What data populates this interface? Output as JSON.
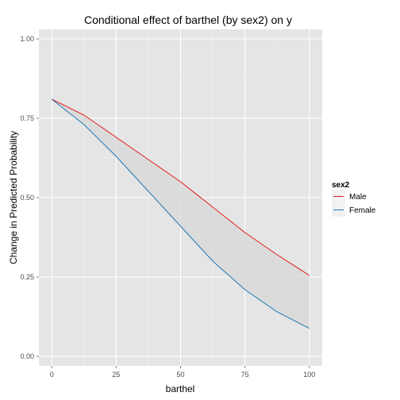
{
  "chart_data": {
    "type": "line",
    "title": "Conditional effect of barthel (by sex2) on y",
    "xlabel": "barthel",
    "ylabel": "Change in Predicted Probability",
    "xlim": [
      -5,
      105
    ],
    "ylim": [
      -0.03,
      1.03
    ],
    "xticks": [
      0,
      25,
      50,
      75,
      100
    ],
    "xtick_labels": [
      "0",
      "25",
      "50",
      "75",
      "100"
    ],
    "yticks": [
      0,
      0.25,
      0.5,
      0.75,
      1.0
    ],
    "ytick_labels": [
      "0.00",
      "0.25",
      "0.50",
      "0.75",
      "1.00"
    ],
    "grid": true,
    "legend_position": "right",
    "legend_title": "sex2",
    "x": [
      0,
      12.5,
      25,
      37.5,
      50,
      62.5,
      75,
      87.5,
      100
    ],
    "series": [
      {
        "name": "Male",
        "color": "#e31a1c",
        "values": [
          0.81,
          0.76,
          0.69,
          0.62,
          0.55,
          0.47,
          0.39,
          0.32,
          0.255
        ]
      },
      {
        "name": "Female",
        "color": "#1f78b4",
        "values": [
          0.81,
          0.73,
          0.63,
          0.52,
          0.41,
          0.3,
          0.21,
          0.14,
          0.088
        ]
      }
    ],
    "ribbon": {
      "between": [
        "Male",
        "Female"
      ],
      "fill": "#d9d9d9"
    }
  }
}
